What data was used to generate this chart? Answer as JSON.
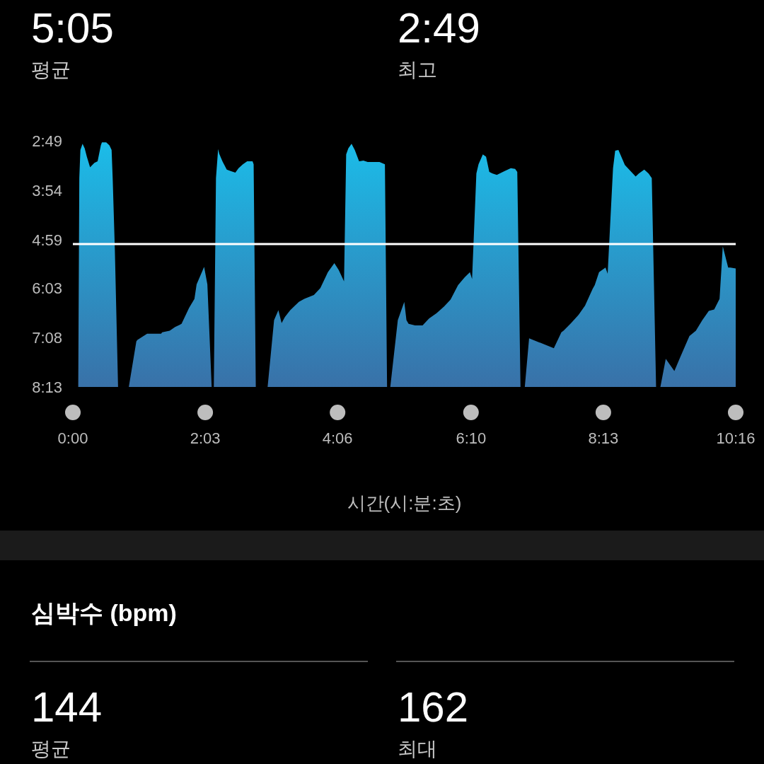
{
  "chart_data": [
    {
      "type": "area",
      "xlabel": "시간(시:분:초)",
      "annotations": [
        "5:05",
        "평균",
        "2:49",
        "최고"
      ],
      "color": "#1bbde9",
      "xlim": [
        0,
        616
      ],
      "xticks": [
        {
          "value": 0,
          "label": "0:00"
        },
        {
          "value": 123,
          "label": "2:03"
        },
        {
          "value": 246,
          "label": "4:06"
        },
        {
          "value": 370,
          "label": "6:10"
        },
        {
          "value": 493,
          "label": "8:13"
        },
        {
          "value": 616,
          "label": "10:16"
        }
      ],
      "ylim": [
        493,
        169
      ],
      "yticks": [
        {
          "value": 169,
          "label": "2:49"
        },
        {
          "value": 234,
          "label": "3:54"
        },
        {
          "value": 299,
          "label": "4:59"
        },
        {
          "value": 363,
          "label": "6:03"
        },
        {
          "value": 428,
          "label": "7:08"
        },
        {
          "value": 493,
          "label": "8:13"
        }
      ],
      "ref_lines": [
        {
          "axis": "y",
          "value": 305,
          "color": "#ffffff"
        }
      ],
      "x": [
        5,
        6,
        7,
        9,
        11,
        13,
        16,
        20,
        23,
        26,
        27,
        31,
        34,
        36,
        37,
        39,
        42,
        52,
        59,
        60,
        69,
        82,
        83,
        90,
        95,
        101,
        108,
        113,
        115,
        122,
        125,
        129,
        131,
        133,
        135,
        136,
        139,
        143,
        147,
        151,
        154,
        158,
        162,
        167,
        168,
        170,
        181,
        187,
        191,
        194,
        197,
        202,
        210,
        215,
        224,
        230,
        237,
        243,
        247,
        252,
        254,
        256,
        259,
        262,
        266,
        270,
        274,
        285,
        290,
        292,
        295,
        302,
        308,
        310,
        312,
        318,
        325,
        331,
        338,
        345,
        351,
        358,
        364,
        369,
        371,
        375,
        377,
        381,
        384,
        387,
        390,
        394,
        401,
        407,
        411,
        413,
        416,
        420,
        424,
        447,
        454,
        456,
        463,
        470,
        476,
        483,
        485,
        489,
        495,
        497,
        502,
        504,
        507,
        513,
        519,
        523,
        526,
        531,
        535,
        538,
        542,
        546,
        551,
        559,
        565,
        573,
        579,
        585,
        591,
        596,
        601,
        604,
        609,
        611,
        616,
        616
      ],
      "values": [
        493,
        218,
        181,
        173,
        179,
        190,
        204,
        198,
        196,
        175,
        171,
        171,
        175,
        181,
        218,
        311,
        493,
        493,
        433,
        431,
        423,
        423,
        421,
        419,
        414,
        410,
        389,
        377,
        358,
        335,
        358,
        493,
        493,
        218,
        180,
        186,
        196,
        207,
        209,
        211,
        205,
        200,
        196,
        196,
        200,
        493,
        493,
        405,
        392,
        409,
        401,
        392,
        381,
        377,
        372,
        363,
        342,
        330,
        339,
        354,
        187,
        179,
        173,
        181,
        196,
        195,
        197,
        197,
        200,
        493,
        493,
        405,
        381,
        405,
        410,
        412,
        412,
        403,
        396,
        387,
        378,
        359,
        349,
        342,
        351,
        212,
        200,
        187,
        190,
        210,
        212,
        214,
        209,
        205,
        206,
        210,
        493,
        493,
        429,
        442,
        421,
        419,
        409,
        398,
        386,
        364,
        359,
        342,
        336,
        344,
        205,
        182,
        181,
        201,
        210,
        216,
        212,
        207,
        212,
        218,
        493,
        493,
        456,
        472,
        452,
        426,
        419,
        405,
        393,
        391,
        377,
        308,
        336,
        336,
        337,
        493
      ]
    },
    {
      "type": "other",
      "title": "심박수 (bpm)",
      "annotations": [
        "144",
        "평균",
        "162",
        "최대"
      ]
    }
  ]
}
